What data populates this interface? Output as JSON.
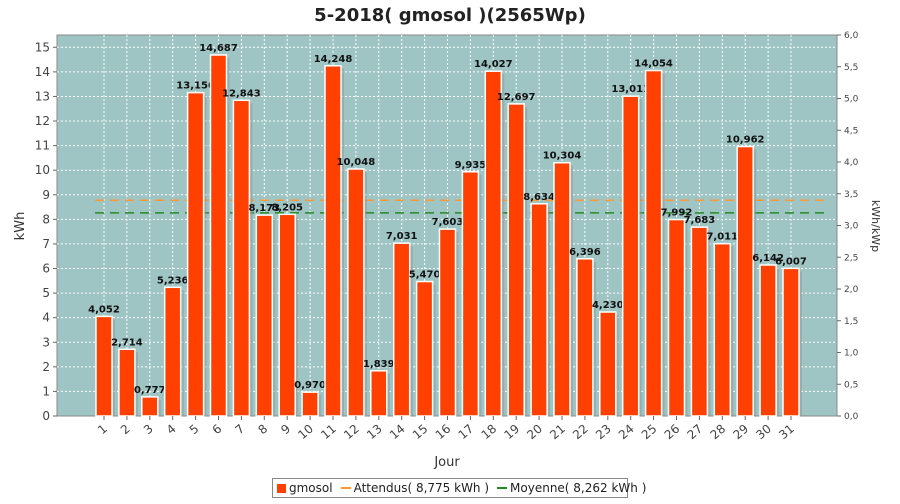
{
  "chart_data": {
    "type": "bar",
    "title": "5-2018( gmosol )(2565Wp)",
    "xlabel": "Jour",
    "ylabel": "kWh",
    "y2label": "kWh/kWp",
    "categories": [
      "1",
      "2",
      "3",
      "4",
      "5",
      "6",
      "7",
      "8",
      "9",
      "10",
      "11",
      "12",
      "13",
      "14",
      "15",
      "16",
      "17",
      "18",
      "19",
      "20",
      "21",
      "22",
      "23",
      "24",
      "25",
      "26",
      "27",
      "28",
      "29",
      "30",
      "31"
    ],
    "series": [
      {
        "name": "gmosol",
        "color": "#ff4000",
        "values": [
          4.052,
          2.714,
          0.777,
          5.236,
          13.156,
          14.687,
          12.843,
          8.173,
          8.205,
          0.97,
          14.248,
          10.048,
          1.839,
          7.031,
          5.47,
          7.603,
          9.935,
          14.027,
          12.697,
          8.634,
          10.304,
          6.396,
          4.23,
          13.011,
          14.054,
          7.992,
          7.683,
          7.011,
          10.962,
          6.142,
          6.007
        ]
      }
    ],
    "data_labels": [
      "4,052",
      "2,714",
      "0,777",
      "5,236",
      "13,156",
      "14,687",
      "12,843",
      "8,173",
      "8,205",
      "0,970",
      "14,248",
      "10,048",
      "1,839",
      "7,031",
      "5,470",
      "7,603",
      "9,935",
      "14,027",
      "12,697",
      "8,634",
      "10,304",
      "6,396",
      "4,230",
      "13,011",
      "14,054",
      "7,992",
      "7,683",
      "7,011",
      "10,962",
      "6,142",
      "6,007"
    ],
    "reference_lines": [
      {
        "name": "Attendus( 8,775 kWh )",
        "value": 8.775,
        "color": "#ff9933"
      },
      {
        "name": "Moyenne( 8,262 kWh )",
        "value": 8.262,
        "color": "#228b22"
      }
    ],
    "ylim": [
      0,
      15.5
    ],
    "yticks": [
      0,
      1,
      2,
      3,
      4,
      5,
      6,
      7,
      8,
      9,
      10,
      11,
      12,
      13,
      14,
      15
    ],
    "y2lim": [
      0,
      6.0
    ],
    "y2ticks": [
      "0,0",
      "0,5",
      "1,0",
      "1,5",
      "2,0",
      "2,5",
      "3,0",
      "3,5",
      "4,0",
      "4,5",
      "5,0",
      "5,5",
      "6,0"
    ],
    "y2tick_values": [
      0,
      0.5,
      1,
      1.5,
      2,
      2.5,
      3,
      3.5,
      4,
      4.5,
      5,
      5.5,
      6
    ],
    "grid": true,
    "legend_position": "bottom",
    "colors": {
      "plot_background": "#9fc4c4",
      "grid": "#ffffff",
      "bar_edge": "#ffffff"
    }
  }
}
